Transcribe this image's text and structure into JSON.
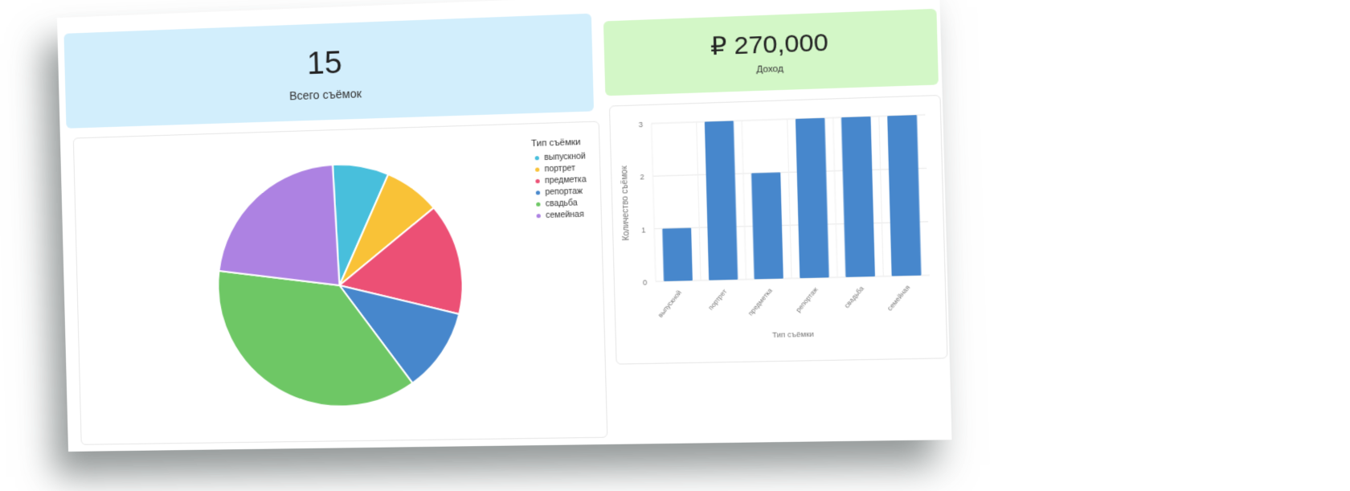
{
  "stats": {
    "total": {
      "value": "15",
      "label": "Всего съёмок",
      "color": "#d2eefc"
    },
    "income": {
      "value": "₽ 270,000",
      "label": "Доход",
      "color": "#d3f7c7"
    }
  },
  "chart_data": [
    {
      "type": "pie",
      "legend_title": "Тип съёмки",
      "legend_position": "top-right",
      "categories": [
        "выпускной",
        "портрет",
        "предметка",
        "репортаж",
        "свадьба",
        "семейная"
      ],
      "values": [
        20000,
        20000,
        40000,
        30000,
        100000,
        60000
      ],
      "colors": [
        "#48bfdc",
        "#f9c237",
        "#ec5075",
        "#4787cc",
        "#6ec765",
        "#ad82e2"
      ]
    },
    {
      "type": "bar",
      "categories": [
        "выпускной",
        "портрет",
        "предметка",
        "репортаж",
        "свадьба",
        "семейная"
      ],
      "values": [
        1,
        3,
        2,
        3,
        3,
        3
      ],
      "xlabel": "Тип съёмки",
      "ylabel": "Количество съёмок",
      "ylim": [
        0,
        3
      ],
      "yticks": [
        "0",
        "1",
        "2",
        "3"
      ],
      "grid": true,
      "color": "#4787cc"
    }
  ]
}
